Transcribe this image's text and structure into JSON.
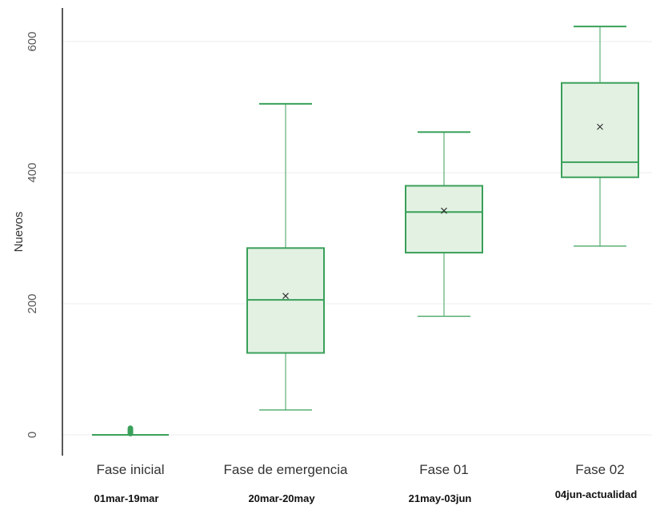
{
  "chart_data": {
    "type": "box",
    "title": "",
    "xlabel": "",
    "ylabel": "Nuevos",
    "ylim": [
      -15,
      655
    ],
    "yticks": [
      {
        "value": 0,
        "label": "0"
      },
      {
        "value": 200,
        "label": "200"
      },
      {
        "value": 400,
        "label": "400"
      },
      {
        "value": 600,
        "label": "600"
      }
    ],
    "grid": true,
    "colors": {
      "box_fill": "#e3f1e3",
      "box_stroke": "#3aa05a",
      "whisker": "#3aa05a",
      "grid": "#eeeeee",
      "axis": "#222222"
    },
    "categories": [
      "Fase inicial",
      "Fase de emergencia",
      "Fase 01",
      "Fase 02"
    ],
    "subtitles": [
      "01mar-19mar",
      "20mar-20may",
      "21may-03jun",
      "04jun-actualidad"
    ],
    "boxes": [
      {
        "min": 0,
        "q1": 0,
        "median": 0,
        "q3": 0,
        "max": 0,
        "mean": 0,
        "outliers": [
          2,
          4,
          6,
          8,
          10
        ]
      },
      {
        "min": 38,
        "q1": 125,
        "median": 206,
        "q3": 285,
        "max": 505,
        "mean": 212,
        "outliers": []
      },
      {
        "min": 181,
        "q1": 278,
        "median": 340,
        "q3": 380,
        "max": 462,
        "mean": 342,
        "outliers": []
      },
      {
        "min": 288,
        "q1": 393,
        "median": 416,
        "q3": 537,
        "max": 623,
        "mean": 470,
        "outliers": []
      }
    ]
  }
}
